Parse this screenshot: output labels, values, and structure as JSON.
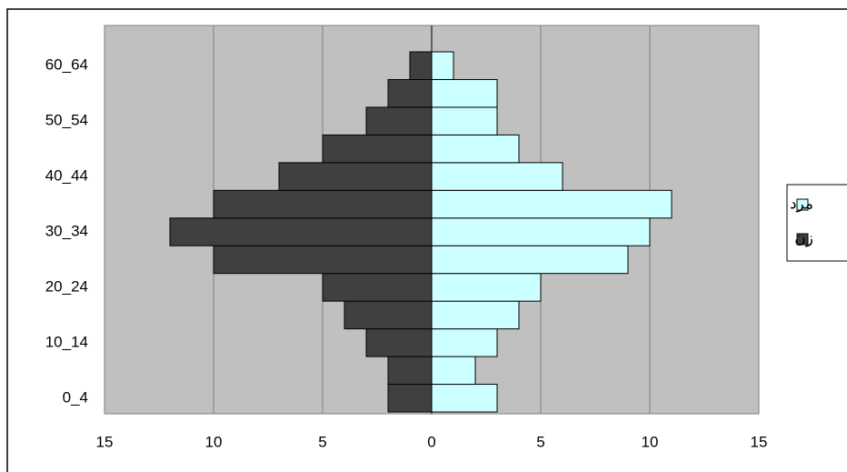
{
  "chart_data": {
    "type": "pyramid",
    "categories": [
      "0_4",
      null,
      "10_14",
      null,
      "20_24",
      null,
      "30_34",
      null,
      "40_44",
      null,
      "50_54",
      null,
      "60_64"
    ],
    "series": [
      {
        "name": "مرد",
        "color": "#ccffff",
        "values": [
          3,
          2,
          3,
          4,
          5,
          9,
          10,
          11,
          6,
          4,
          3,
          3,
          1
        ]
      },
      {
        "name": "زن",
        "color": "#404040",
        "values": [
          -2,
          -2,
          -3,
          -4,
          -5,
          -10,
          -12,
          -10,
          -7,
          -5,
          -3,
          -2,
          -1
        ]
      }
    ],
    "xlim": [
      -15,
      15
    ],
    "xticks": [
      {
        "value": -15,
        "label": "15"
      },
      {
        "value": -10,
        "label": "10"
      },
      {
        "value": -5,
        "label": "5"
      },
      0,
      5,
      10,
      15
    ],
    "grid": true,
    "legend": "right"
  }
}
